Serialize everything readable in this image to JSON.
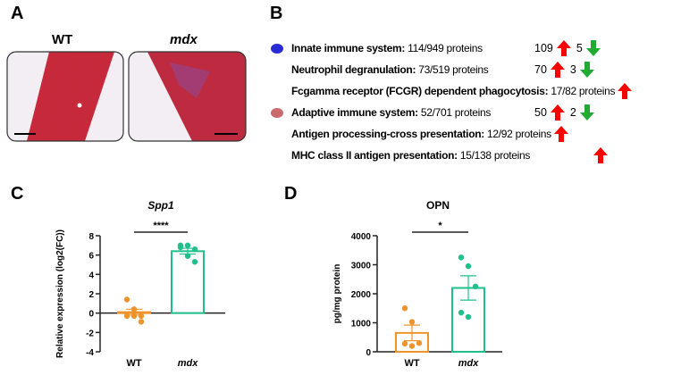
{
  "panels": {
    "a": "A",
    "b": "B",
    "c": "C",
    "d": "D"
  },
  "panel_a": {
    "wt_label": "WT",
    "mdx_label": "mdx"
  },
  "panel_b": {
    "rows": [
      {
        "name": "Innate immune system:",
        "count": " 114/949 proteins",
        "up": "109",
        "down": "5",
        "marker": "#2b2bd6"
      },
      {
        "name": "Neutrophil degranulation:",
        "count": " 73/519 proteins",
        "up": "70",
        "down": "3"
      },
      {
        "name": "Fcgamma receptor (FCGR) dependent phagocytosis:",
        "count": " 17/82 proteins"
      },
      {
        "name": "Adaptive immune system:",
        "count": " 52/701 proteins",
        "up": "50",
        "down": "2",
        "marker": "#c96a6e"
      },
      {
        "name": "Antigen processing-cross presentation:",
        "count": " 12/92 proteins"
      },
      {
        "name": "MHC class II antigen presentation:",
        "count": " 15/138 proteins"
      }
    ],
    "up_color": "#ff0000",
    "down_color": "#22aa33"
  },
  "chart_data": [
    {
      "type": "bar",
      "title": "Spp1",
      "ylabel": "Relative expression (log2(FC))",
      "categories": [
        "WT",
        "mdx"
      ],
      "ylim": [
        -4,
        8
      ],
      "yticks": [
        -4,
        -2,
        0,
        2,
        4,
        6,
        8
      ],
      "means": [
        0.1,
        6.4
      ],
      "sem": [
        0.3,
        0.3
      ],
      "points": [
        [
          1.4,
          0.4,
          -0.3,
          -0.3,
          -0.3,
          -0.9
        ],
        [
          7.0,
          7.0,
          6.6,
          6.8,
          5.9,
          5.3
        ]
      ],
      "significance": "****",
      "colors": [
        "#f0932b",
        "#1fc08a"
      ]
    },
    {
      "type": "bar",
      "title": "OPN",
      "ylabel": "pg/mg protein",
      "categories": [
        "WT",
        "mdx"
      ],
      "ylim": [
        0,
        4000
      ],
      "yticks": [
        0,
        1000,
        2000,
        3000,
        4000
      ],
      "means": [
        650,
        2200
      ],
      "sem": [
        270,
        420
      ],
      "points": [
        [
          1500,
          1030,
          300,
          280,
          200
        ],
        [
          3250,
          2950,
          2250,
          1350,
          1200
        ]
      ],
      "significance": "*",
      "colors": [
        "#f0932b",
        "#1fc08a"
      ]
    }
  ]
}
